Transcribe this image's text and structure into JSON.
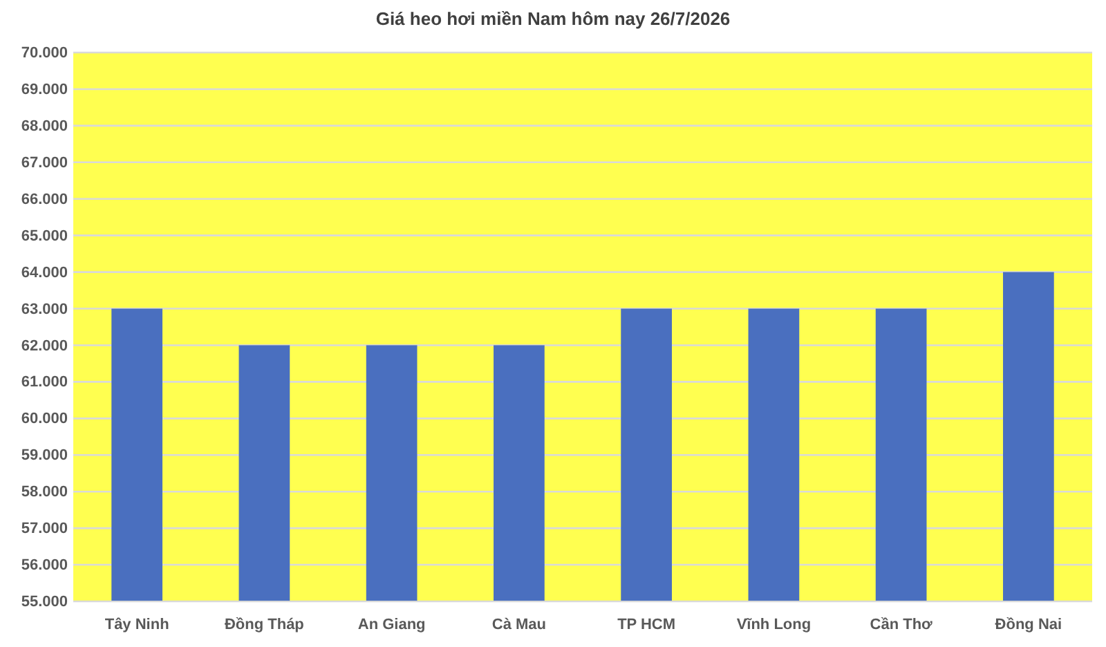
{
  "chart_data": {
    "type": "bar",
    "title": "Giá heo hơi miền Nam hôm nay 26/7/2026",
    "categories": [
      "Tây Ninh",
      "Đồng Tháp",
      "An Giang",
      "Cà Mau",
      "TP HCM",
      "Vĩnh Long",
      "Cần Thơ",
      "Đồng Nai"
    ],
    "values": [
      63000,
      62000,
      62000,
      62000,
      63000,
      63000,
      63000,
      64000
    ],
    "color": "#4a6fbf",
    "ylim": [
      55000,
      70000
    ],
    "yticks": [
      {
        "value": 55000,
        "label": "55.000"
      },
      {
        "value": 56000,
        "label": "56.000"
      },
      {
        "value": 57000,
        "label": "57.000"
      },
      {
        "value": 58000,
        "label": "58.000"
      },
      {
        "value": 59000,
        "label": "59.000"
      },
      {
        "value": 60000,
        "label": "60.000"
      },
      {
        "value": 61000,
        "label": "61.000"
      },
      {
        "value": 62000,
        "label": "62.000"
      },
      {
        "value": 63000,
        "label": "63.000"
      },
      {
        "value": 64000,
        "label": "64.000"
      },
      {
        "value": 65000,
        "label": "65.000"
      },
      {
        "value": 66000,
        "label": "66.000"
      },
      {
        "value": 67000,
        "label": "67.000"
      },
      {
        "value": 68000,
        "label": "68.000"
      },
      {
        "value": 69000,
        "label": "69.000"
      },
      {
        "value": 70000,
        "label": "70.000"
      }
    ],
    "grid": "y"
  }
}
